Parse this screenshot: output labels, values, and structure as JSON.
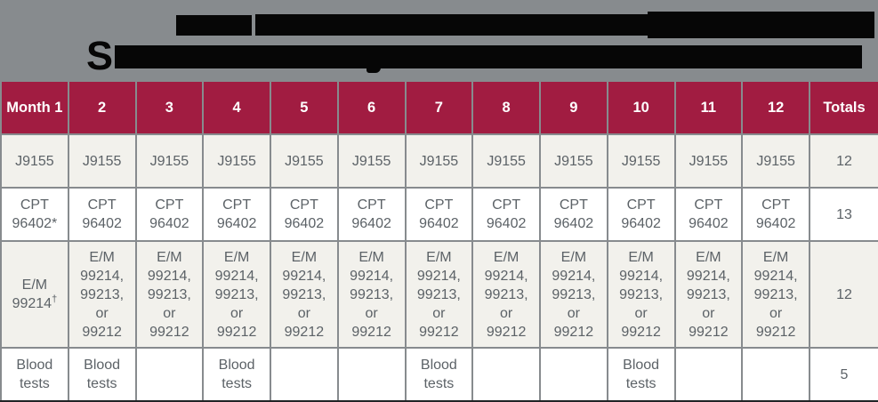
{
  "title": {
    "redacted": true,
    "visible_letter_line2": "S"
  },
  "colors": {
    "page_background": "#878B8E",
    "header_background": "#A11C41",
    "header_text": "#FFFFFF",
    "row_cream": "#F2F1EC",
    "row_white": "#FFFFFF",
    "cell_text": "#5C6267",
    "redaction": "#060606"
  },
  "table": {
    "columns": [
      "Month 1",
      "2",
      "3",
      "4",
      "5",
      "6",
      "7",
      "8",
      "9",
      "10",
      "11",
      "12",
      "Totals"
    ],
    "rows": [
      {
        "id": "j-code",
        "cells": [
          "J9155",
          "J9155",
          "J9155",
          "J9155",
          "J9155",
          "J9155",
          "J9155",
          "J9155",
          "J9155",
          "J9155",
          "J9155",
          "J9155"
        ],
        "total": "12"
      },
      {
        "id": "cpt",
        "cells": [
          "CPT\n96402*",
          "CPT\n96402",
          "CPT\n96402",
          "CPT\n96402",
          "CPT\n96402",
          "CPT\n96402",
          "CPT\n96402",
          "CPT\n96402",
          "CPT\n96402",
          "CPT\n96402",
          "CPT\n96402",
          "CPT\n96402"
        ],
        "total": "13"
      },
      {
        "id": "em",
        "cells_first": {
          "line1": "E/M",
          "code": "99214",
          "mark": "†"
        },
        "cells": [
          "",
          "E/M\n99214,\n99213,\nor\n99212",
          "E/M\n99214,\n99213,\nor\n99212",
          "E/M\n99214,\n99213,\nor\n99212",
          "E/M\n99214,\n99213,\nor\n99212",
          "E/M\n99214,\n99213,\nor\n99212",
          "E/M\n99214,\n99213,\nor\n99212",
          "E/M\n99214,\n99213,\nor\n99212",
          "E/M\n99214,\n99213,\nor\n99212",
          "E/M\n99214,\n99213,\nor\n99212",
          "E/M\n99214,\n99213,\nor\n99212",
          "E/M\n99214,\n99213,\nor\n99212"
        ],
        "total": "12"
      },
      {
        "id": "blood-tests",
        "cells": [
          "Blood\ntests",
          "Blood\ntests",
          "",
          "Blood\ntests",
          "",
          "",
          "Blood\ntests",
          "",
          "",
          "Blood\ntests",
          "",
          ""
        ],
        "total": "5"
      }
    ]
  }
}
